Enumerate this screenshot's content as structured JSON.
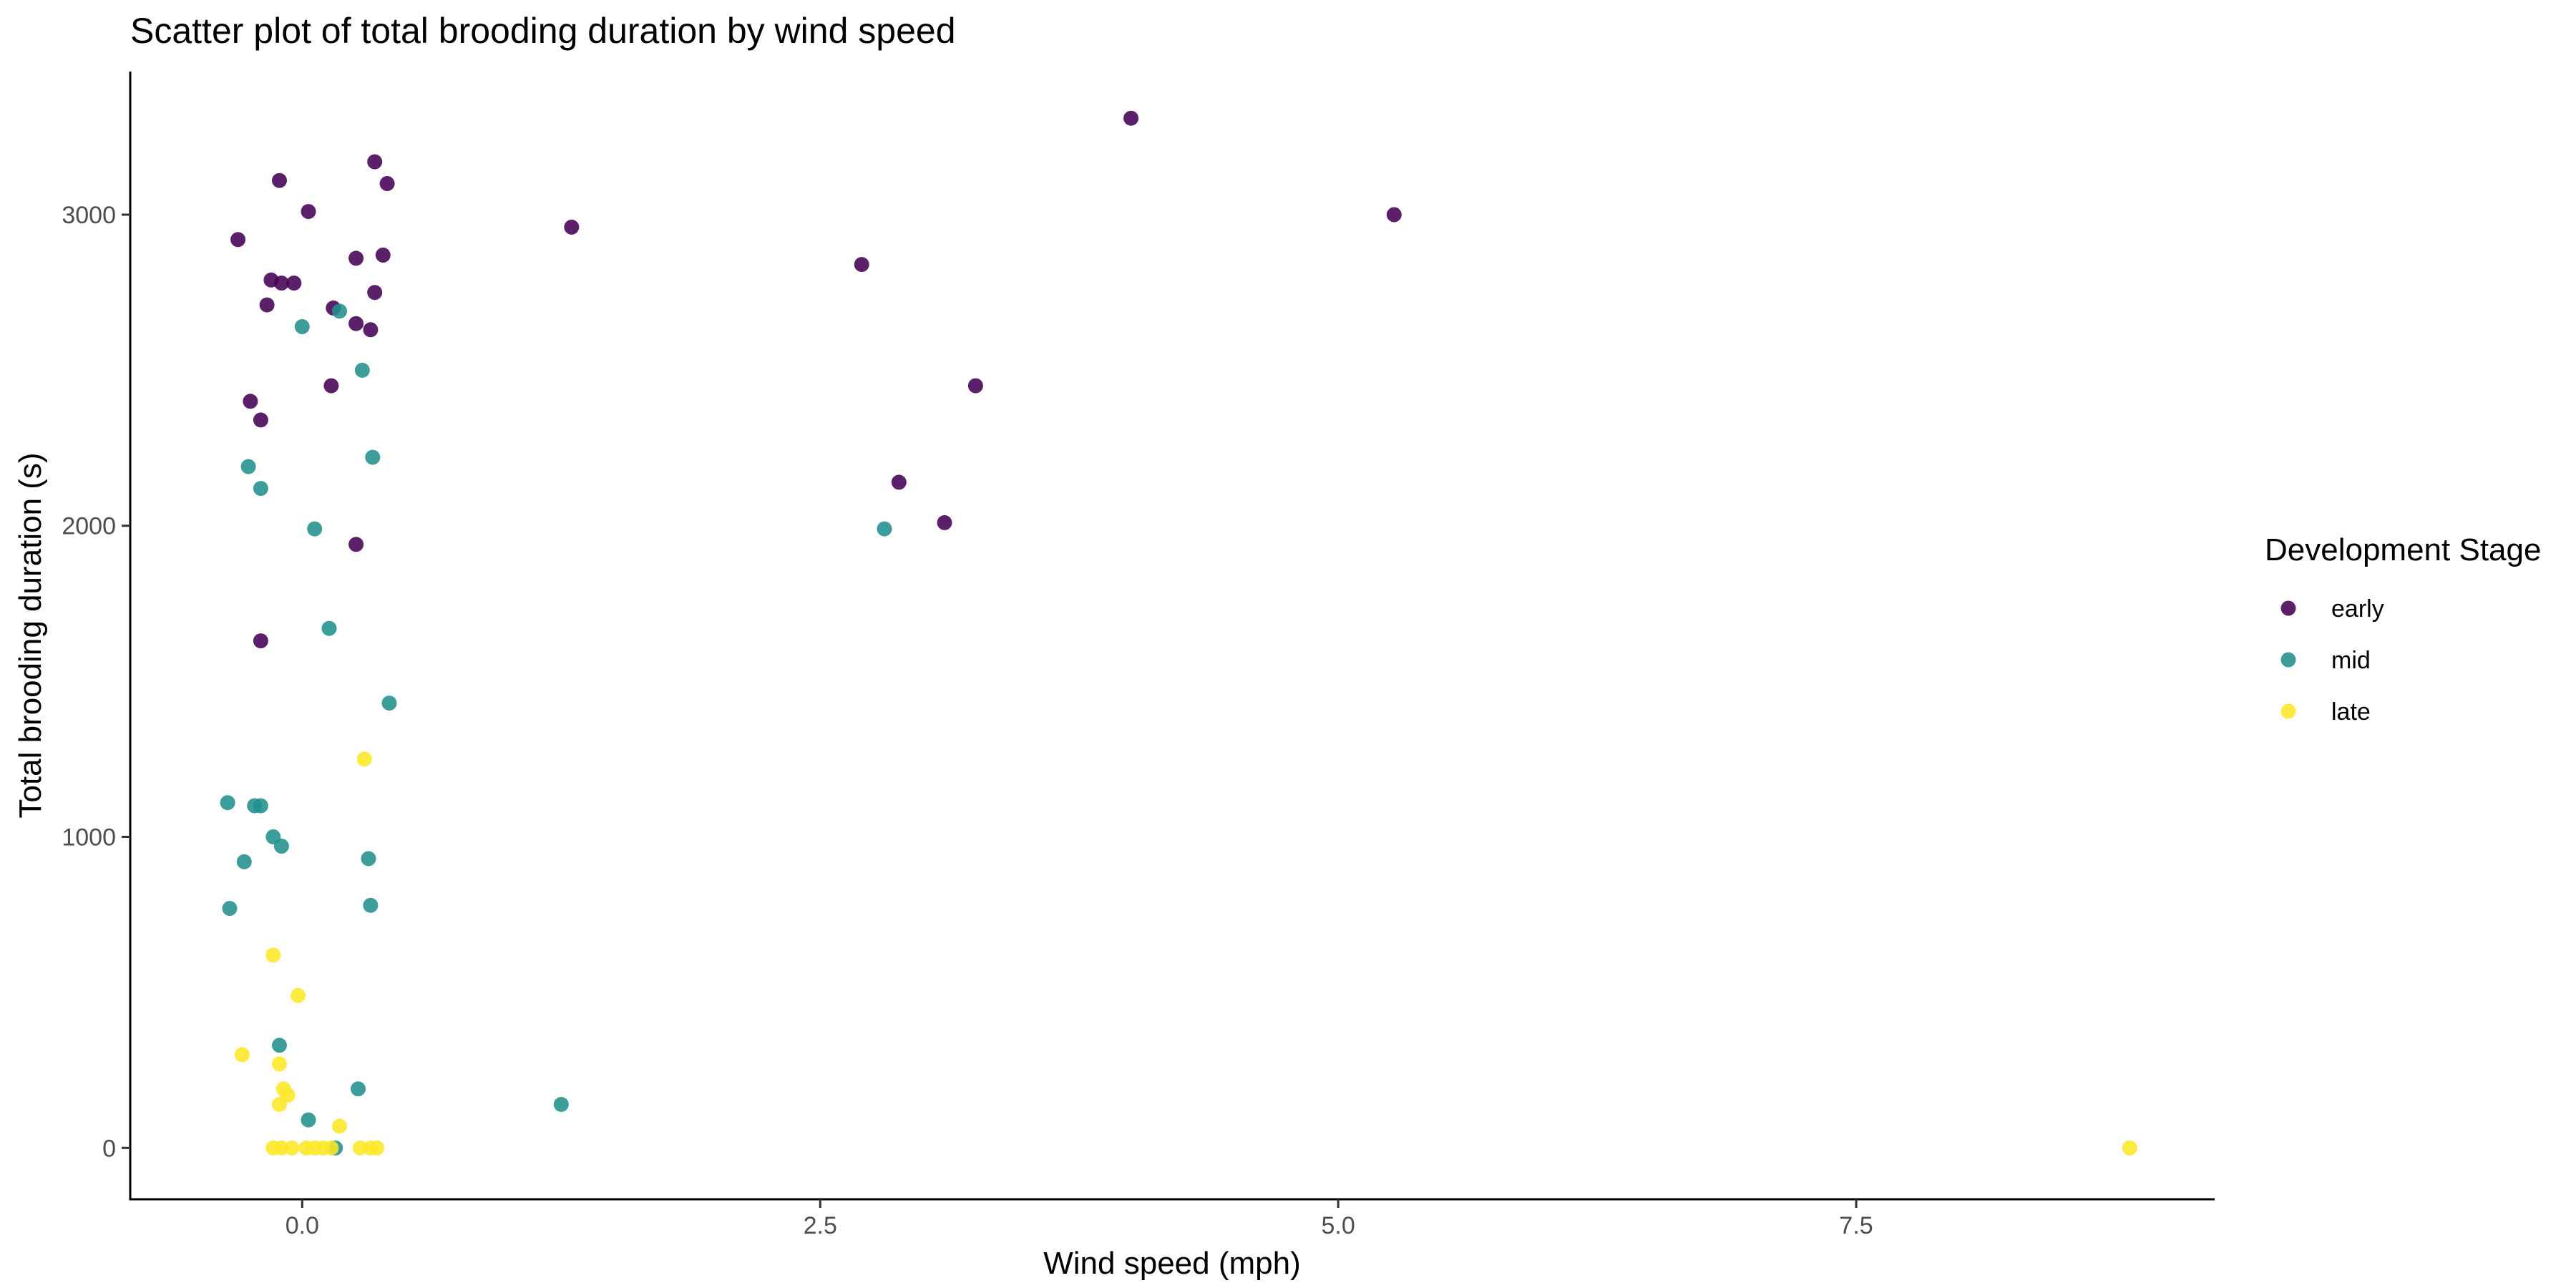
{
  "chart_data": {
    "type": "scatter",
    "title": "Scatter plot of total brooding duration by wind speed",
    "xlabel": "Wind speed (mph)",
    "ylabel": "Total brooding duration (s)",
    "xlim": [
      -0.83,
      9.23
    ],
    "ylim": [
      -165,
      3460
    ],
    "x_ticks": [
      0,
      2.5,
      5,
      7.5
    ],
    "x_tick_labels": [
      "0.0",
      "2.5",
      "5.0",
      "7.5"
    ],
    "y_ticks": [
      0,
      1000,
      2000,
      3000
    ],
    "y_tick_labels": [
      "0",
      "1000",
      "2000",
      "3000"
    ],
    "grid": false,
    "legend": {
      "title": "Development Stage",
      "placement": "right",
      "entries": [
        "early",
        "mid",
        "late"
      ]
    },
    "colors": {
      "early": "#440154",
      "mid": "#21908C",
      "late": "#FDE725",
      "axis": "#000000",
      "tick_label": "#4d4d4d"
    },
    "series": [
      {
        "name": "early",
        "points": [
          [
            -0.31,
            2920
          ],
          [
            -0.11,
            3110
          ],
          [
            0.03,
            3010
          ],
          [
            0.35,
            3170
          ],
          [
            0.41,
            3100
          ],
          [
            -0.15,
            2790
          ],
          [
            -0.1,
            2780
          ],
          [
            -0.04,
            2780
          ],
          [
            -0.17,
            2710
          ],
          [
            0.15,
            2700
          ],
          [
            0.26,
            2860
          ],
          [
            0.39,
            2870
          ],
          [
            0.35,
            2750
          ],
          [
            0.26,
            2650
          ],
          [
            0.33,
            2630
          ],
          [
            0.14,
            2450
          ],
          [
            -0.25,
            2400
          ],
          [
            -0.2,
            2340
          ],
          [
            0.26,
            1940
          ],
          [
            -0.2,
            1630
          ],
          [
            1.3,
            2960
          ],
          [
            2.7,
            2840
          ],
          [
            4.0,
            3310
          ],
          [
            5.27,
            3000
          ],
          [
            3.25,
            2450
          ],
          [
            2.88,
            2140
          ],
          [
            3.1,
            2010
          ]
        ]
      },
      {
        "name": "mid",
        "points": [
          [
            0.18,
            2690
          ],
          [
            0.0,
            2640
          ],
          [
            0.29,
            2500
          ],
          [
            0.34,
            2220
          ],
          [
            -0.26,
            2190
          ],
          [
            -0.2,
            2120
          ],
          [
            0.06,
            1990
          ],
          [
            0.13,
            1670
          ],
          [
            0.42,
            1430
          ],
          [
            -0.36,
            1110
          ],
          [
            -0.23,
            1100
          ],
          [
            -0.2,
            1100
          ],
          [
            -0.14,
            1000
          ],
          [
            -0.1,
            970
          ],
          [
            -0.28,
            920
          ],
          [
            0.32,
            930
          ],
          [
            -0.35,
            770
          ],
          [
            0.33,
            780
          ],
          [
            -0.11,
            330
          ],
          [
            0.27,
            190
          ],
          [
            0.03,
            90
          ],
          [
            0.16,
            0
          ],
          [
            1.25,
            140
          ],
          [
            2.81,
            1990
          ]
        ]
      },
      {
        "name": "late",
        "points": [
          [
            0.3,
            1250
          ],
          [
            -0.14,
            620
          ],
          [
            -0.02,
            490
          ],
          [
            -0.29,
            300
          ],
          [
            -0.11,
            270
          ],
          [
            -0.09,
            190
          ],
          [
            -0.07,
            170
          ],
          [
            -0.11,
            140
          ],
          [
            0.18,
            70
          ],
          [
            -0.14,
            0
          ],
          [
            -0.1,
            0
          ],
          [
            -0.05,
            0
          ],
          [
            0.02,
            0
          ],
          [
            0.06,
            0
          ],
          [
            0.1,
            0
          ],
          [
            0.14,
            0
          ],
          [
            0.28,
            0
          ],
          [
            0.33,
            0
          ],
          [
            0.36,
            0
          ],
          [
            8.82,
            0
          ]
        ]
      }
    ]
  }
}
